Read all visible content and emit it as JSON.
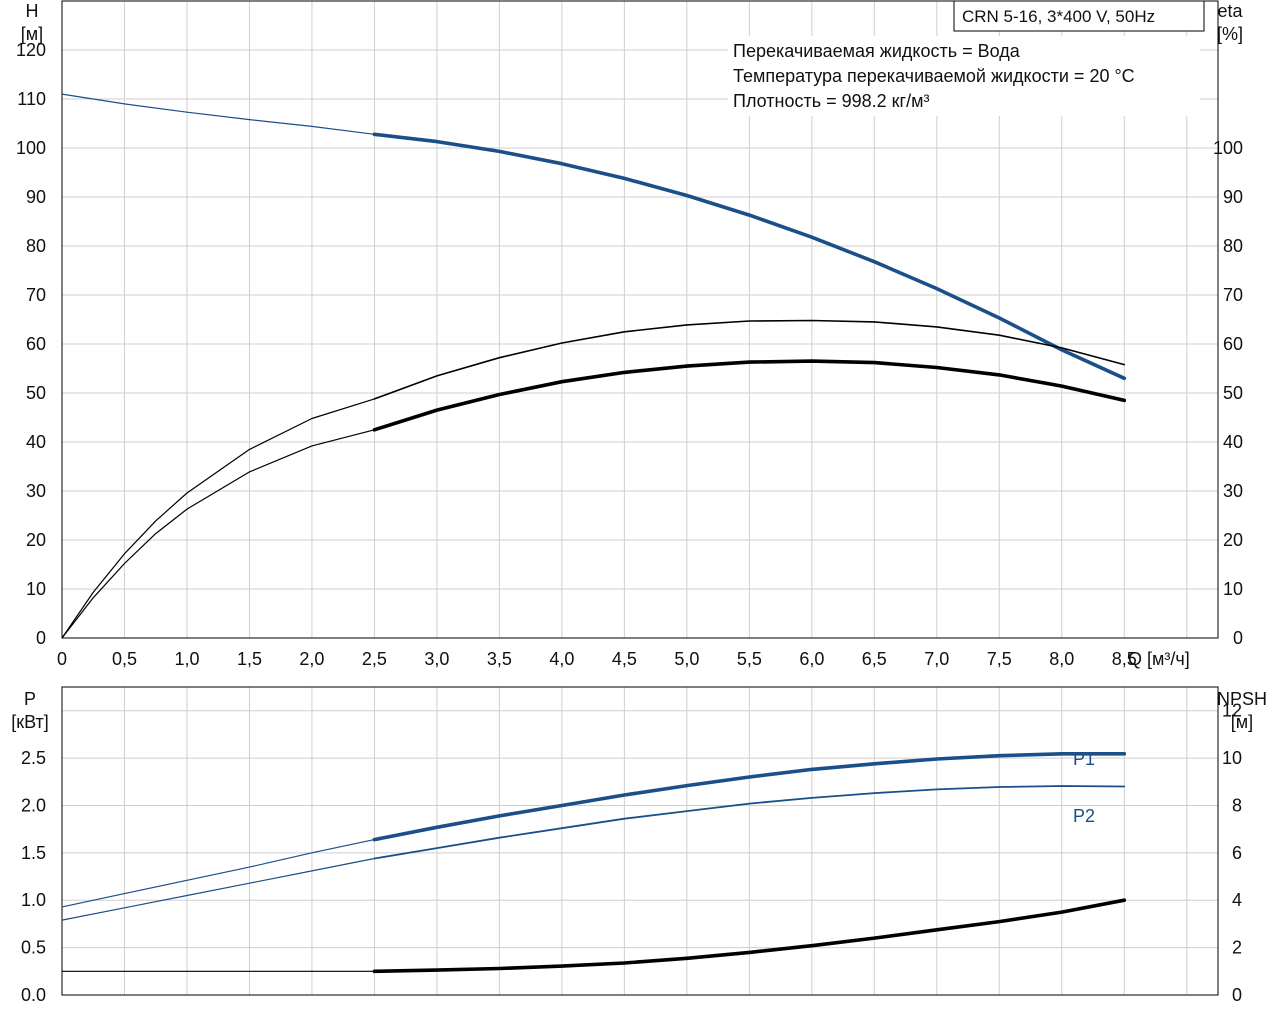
{
  "header": {
    "model": "CRN 5-16, 3*400 V, 50Hz",
    "notes": [
      "Перекачиваемая жидкость = Вода",
      "Температура перекачиваемой жидкости = 20 °C",
      "Плотность = 998.2 кг/м³"
    ]
  },
  "top_axes": {
    "left_title": "H",
    "left_unit": "[м]",
    "right_title": "eta",
    "right_unit": "[%]",
    "x_label": "Q [м³/ч]"
  },
  "bottom_axes": {
    "left_title": "P",
    "left_unit": "[кВт]",
    "right_title": "NPSH",
    "right_unit": "[м]"
  },
  "colors": {
    "blue": "#1a4f8a",
    "black": "#000000",
    "grid": "#cfcfcf"
  },
  "chart_data": [
    {
      "type": "line",
      "panel": "top",
      "xlim": [
        0,
        9.25
      ],
      "ylim_left": [
        0,
        130
      ],
      "ylim_right": [
        0,
        130
      ],
      "x_ticks": [
        "0",
        "0,5",
        "1,0",
        "1,5",
        "2,0",
        "2,5",
        "3,0",
        "3,5",
        "4,0",
        "4,5",
        "5,0",
        "5,5",
        "6,0",
        "6,5",
        "7,0",
        "7,5",
        "8,0",
        "8,5"
      ],
      "y_left_ticks": [
        "0",
        "10",
        "20",
        "30",
        "40",
        "50",
        "60",
        "70",
        "80",
        "90",
        "100",
        "110",
        "120"
      ],
      "y_right_ticks": [
        "0",
        "10",
        "20",
        "30",
        "40",
        "50",
        "60",
        "70",
        "80",
        "90",
        "100"
      ],
      "series": [
        {
          "axis": "left",
          "color": "blue",
          "thin": [
            [
              0,
              111
            ],
            [
              0.5,
              109
            ],
            [
              1.0,
              107.3
            ],
            [
              1.5,
              105.8
            ],
            [
              2.0,
              104.4
            ],
            [
              2.5,
              102.8
            ]
          ],
          "thick": [
            [
              2.5,
              102.8
            ],
            [
              3.0,
              101.3
            ],
            [
              3.5,
              99.3
            ],
            [
              4.0,
              96.8
            ],
            [
              4.5,
              93.8
            ],
            [
              5.0,
              90.3
            ],
            [
              5.5,
              86.3
            ],
            [
              6.0,
              81.8
            ],
            [
              6.5,
              76.8
            ],
            [
              7.0,
              71.3
            ],
            [
              7.5,
              65.3
            ],
            [
              8.0,
              58.8
            ],
            [
              8.5,
              53
            ]
          ]
        },
        {
          "axis": "right",
          "color": "black",
          "thin": [
            [
              0,
              0
            ],
            [
              0.25,
              9.3
            ],
            [
              0.5,
              17.2
            ],
            [
              0.75,
              23.9
            ],
            [
              1.0,
              29.6
            ],
            [
              1.5,
              38.5
            ],
            [
              2.0,
              44.8
            ],
            [
              2.5,
              48.8
            ]
          ],
          "thick": [
            [
              2.5,
              48.8
            ],
            [
              3.0,
              53.5
            ],
            [
              3.5,
              57.2
            ],
            [
              4.0,
              60.2
            ],
            [
              4.5,
              62.5
            ],
            [
              5.0,
              63.9
            ],
            [
              5.5,
              64.7
            ],
            [
              6.0,
              64.8
            ],
            [
              6.5,
              64.5
            ],
            [
              7.0,
              63.5
            ],
            [
              7.5,
              61.8
            ],
            [
              8.0,
              59.2
            ],
            [
              8.5,
              55.8
            ]
          ],
          "thick_width": 1.6
        },
        {
          "axis": "left",
          "color": "black",
          "thin": [
            [
              0,
              0
            ],
            [
              0.25,
              8.2
            ],
            [
              0.5,
              15.2
            ],
            [
              0.75,
              21.3
            ],
            [
              1.0,
              26.3
            ],
            [
              1.5,
              33.9
            ],
            [
              2.0,
              39.2
            ],
            [
              2.5,
              42.5
            ]
          ],
          "thick": [
            [
              2.5,
              42.5
            ],
            [
              3.0,
              46.5
            ],
            [
              3.5,
              49.7
            ],
            [
              4.0,
              52.3
            ],
            [
              4.5,
              54.2
            ],
            [
              5.0,
              55.5
            ],
            [
              5.5,
              56.3
            ],
            [
              6.0,
              56.5
            ],
            [
              6.5,
              56.2
            ],
            [
              7.0,
              55.2
            ],
            [
              7.5,
              53.7
            ],
            [
              8.0,
              51.4
            ],
            [
              8.5,
              48.5
            ]
          ]
        }
      ]
    },
    {
      "type": "line",
      "panel": "bottom",
      "xlim": [
        0,
        9.25
      ],
      "ylim_left": [
        0,
        3.25
      ],
      "ylim_right": [
        0,
        13
      ],
      "y_left_ticks": [
        "0.0",
        "0.5",
        "1.0",
        "1.5",
        "2.0",
        "2.5"
      ],
      "y_right_ticks": [
        "0",
        "2",
        "4",
        "6",
        "8",
        "10",
        "12"
      ],
      "series": [
        {
          "name": "P1",
          "axis": "left",
          "color": "blue",
          "thin": [
            [
              0,
              0.93
            ],
            [
              0.5,
              1.07
            ],
            [
              1.0,
              1.21
            ],
            [
              1.5,
              1.35
            ],
            [
              2.0,
              1.5
            ],
            [
              2.5,
              1.64
            ]
          ],
          "thick": [
            [
              2.5,
              1.64
            ],
            [
              3.0,
              1.77
            ],
            [
              3.5,
              1.89
            ],
            [
              4.0,
              2.0
            ],
            [
              4.5,
              2.11
            ],
            [
              5.0,
              2.21
            ],
            [
              5.5,
              2.3
            ],
            [
              6.0,
              2.38
            ],
            [
              6.5,
              2.44
            ],
            [
              7.0,
              2.49
            ],
            [
              7.5,
              2.525
            ],
            [
              8.0,
              2.545
            ],
            [
              8.5,
              2.545
            ]
          ]
        },
        {
          "name": "P2",
          "axis": "left",
          "color": "blue",
          "thin": [
            [
              0,
              0.79
            ],
            [
              0.5,
              0.92
            ],
            [
              1.0,
              1.05
            ],
            [
              1.5,
              1.18
            ],
            [
              2.0,
              1.31
            ],
            [
              2.5,
              1.44
            ]
          ],
          "thick": [
            [
              2.5,
              1.44
            ],
            [
              3.0,
              1.55
            ],
            [
              3.5,
              1.66
            ],
            [
              4.0,
              1.76
            ],
            [
              4.5,
              1.86
            ],
            [
              5.0,
              1.94
            ],
            [
              5.5,
              2.02
            ],
            [
              6.0,
              2.08
            ],
            [
              6.5,
              2.13
            ],
            [
              7.0,
              2.17
            ],
            [
              7.5,
              2.195
            ],
            [
              8.0,
              2.205
            ],
            [
              8.5,
              2.2
            ]
          ],
          "thick_width": 1.8
        },
        {
          "name": "NPSH",
          "axis": "right",
          "color": "black",
          "thin": [
            [
              0,
              1.0
            ],
            [
              2.5,
              1.0
            ]
          ],
          "thick": [
            [
              2.5,
              1.0
            ],
            [
              3.0,
              1.05
            ],
            [
              3.5,
              1.12
            ],
            [
              4.0,
              1.22
            ],
            [
              4.5,
              1.35
            ],
            [
              5.0,
              1.55
            ],
            [
              5.5,
              1.8
            ],
            [
              6.0,
              2.08
            ],
            [
              6.5,
              2.4
            ],
            [
              7.0,
              2.75
            ],
            [
              7.5,
              3.1
            ],
            [
              8.0,
              3.5
            ],
            [
              8.5,
              4.0
            ]
          ]
        }
      ]
    }
  ]
}
